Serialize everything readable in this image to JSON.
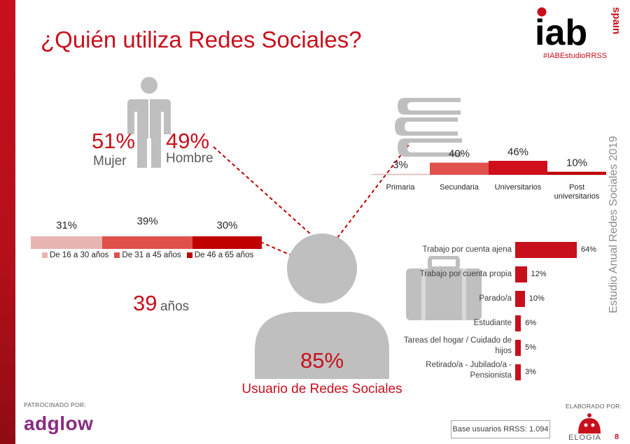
{
  "title": "¿Quién utiliza Redes Sociales?",
  "brand": {
    "logo_main": "iab",
    "logo_sub": "spain",
    "hashtag": "#IABEstudioRRSS"
  },
  "side_text": "Estudio Anual Redes Sociales 2019",
  "colors": {
    "primary_red": "#c8101d",
    "dark_red": "#c00000",
    "mid_red": "#e0514c",
    "light_pink": "#e8b4b4",
    "grey_icon": "#bfbfbf"
  },
  "icons": [
    "person-gender-icon",
    "books-icon",
    "briefcase-icon",
    "user-silhouette-icon",
    "elogia-mascot-icon"
  ],
  "gender": {
    "mujer_pct": "51%",
    "mujer_label": "Mujer",
    "hombre_pct": "49%",
    "hombre_label": "Hombre"
  },
  "average_age": {
    "value": "39",
    "unit": "años"
  },
  "user": {
    "pct": "85%",
    "label": "Usuario de Redes Sociales"
  },
  "footer": {
    "sponsored_by": "PATROCINADO POR:",
    "sponsor": "adglow",
    "made_by": "ELABORADO POR:",
    "maker": "ELOGIA",
    "base": "Base usuarios RRSS: 1.094",
    "page_number": "8"
  },
  "chart_data": [
    {
      "type": "bar",
      "orientation": "horizontal-stacked",
      "categories": [
        "De 16 a 30 años",
        "De 31 a 45 años",
        "De 46 a 65 años"
      ],
      "values": [
        31,
        39,
        30
      ],
      "value_labels": [
        "31%",
        "39%",
        "30%"
      ],
      "colors": [
        "#e8b4b4",
        "#e0514c",
        "#c00000"
      ],
      "legend": "bottom"
    },
    {
      "type": "bar",
      "categories": [
        "Primaria",
        "Secundaria",
        "Universitarios",
        "Post universitarios"
      ],
      "values": [
        3,
        40,
        46,
        10
      ],
      "value_labels": [
        "3%",
        "40%",
        "46%",
        "10%"
      ],
      "colors": [
        "#e8b4b4",
        "#e0514c",
        "#d00e1c",
        "#c00000"
      ]
    },
    {
      "type": "bar",
      "orientation": "horizontal",
      "categories": [
        "Trabajo por cuenta ajena",
        "Trabajo por cuenta propia",
        "Parado/a",
        "Estudiante",
        "Tareas del hogar / Cuidado de hijos",
        "Retirado/a - Jubilado/a - Pensionista"
      ],
      "values": [
        64,
        12,
        10,
        6,
        5,
        3
      ],
      "value_labels": [
        "64%",
        "12%",
        "10%",
        "6%",
        "5%",
        "3%"
      ],
      "xlim": [
        0,
        64
      ],
      "color": "#c8101d"
    }
  ]
}
